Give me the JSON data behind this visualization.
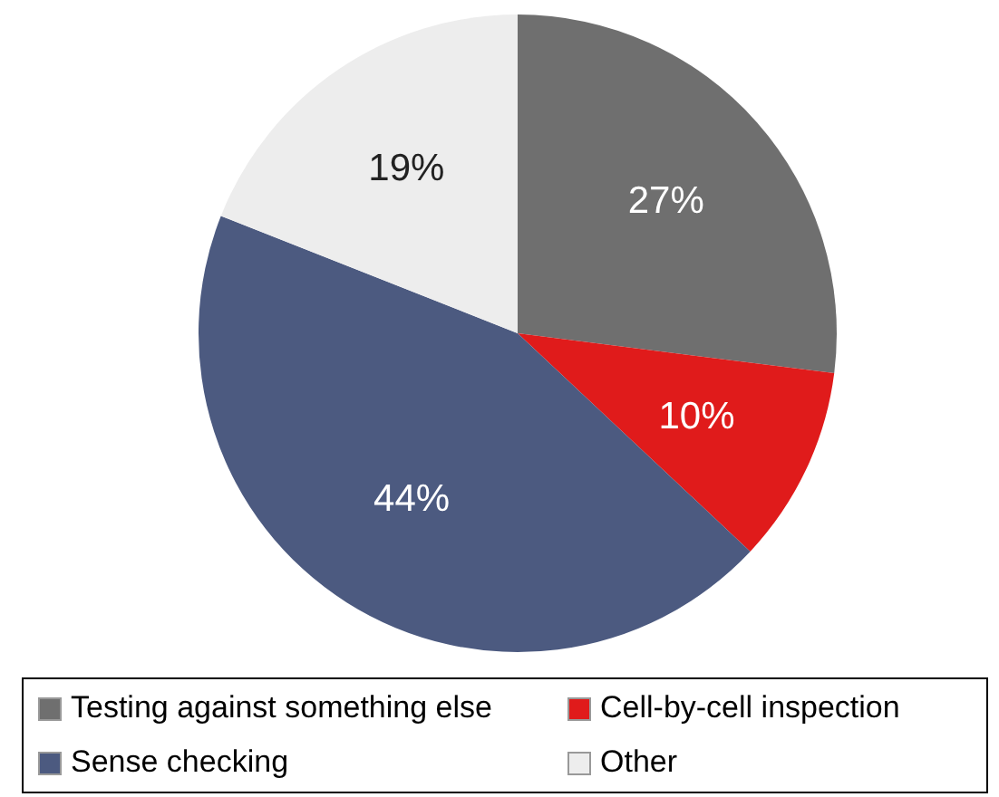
{
  "chart_data": {
    "type": "pie",
    "categories": [
      "Testing against something else",
      "Cell-by-cell inspection",
      "Sense checking",
      "Other"
    ],
    "values": [
      27,
      10,
      44,
      19
    ],
    "colors": [
      "#6f6f6f",
      "#e01b1b",
      "#4c5a80",
      "#ededed"
    ],
    "value_labels": [
      "27%",
      "10%",
      "44%",
      "19%"
    ],
    "legend": "bottom"
  }
}
